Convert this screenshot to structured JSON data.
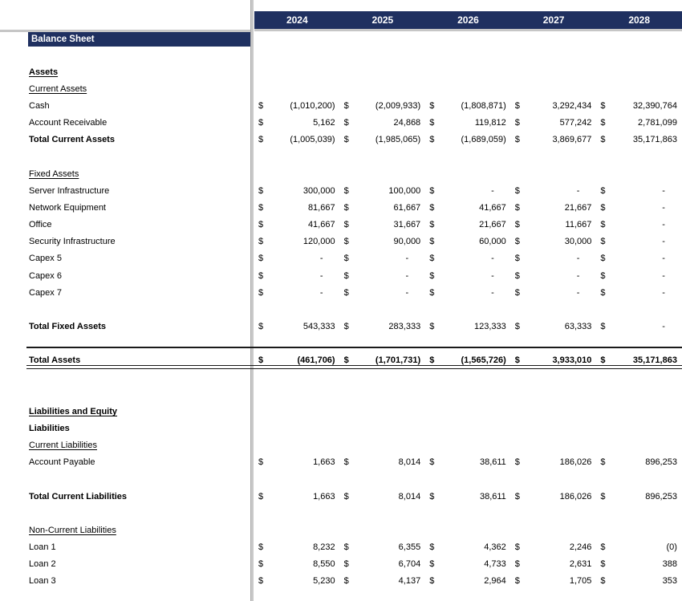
{
  "title": "Balance Sheet",
  "currency_symbol": "$",
  "years": [
    "2024",
    "2025",
    "2026",
    "2027",
    "2028"
  ],
  "colors": {
    "header_navy": "#1F3060",
    "divider_gray": "#C9C9C9",
    "total_border_dark": "#1A1A1A"
  },
  "rows": [
    {
      "label": "",
      "style": "blank",
      "values": null
    },
    {
      "label": "Assets",
      "style": "heading",
      "values": null
    },
    {
      "label": "Current Assets",
      "style": "subheading",
      "values": null
    },
    {
      "label": "Cash",
      "style": "item",
      "values": [
        "(1,010,200)",
        "(2,009,933)",
        "(1,808,871)",
        "3,292,434",
        "32,390,764"
      ]
    },
    {
      "label": "Account Receivable",
      "style": "item",
      "values": [
        "5,162",
        "24,868",
        "119,812",
        "577,242",
        "2,781,099"
      ]
    },
    {
      "label": "Total Current Assets",
      "style": "subtotal",
      "values": [
        "(1,005,039)",
        "(1,985,065)",
        "(1,689,059)",
        "3,869,677",
        "35,171,863"
      ]
    },
    {
      "label": "",
      "style": "blank",
      "values": null
    },
    {
      "label": "Fixed Assets",
      "style": "subheading",
      "values": null
    },
    {
      "label": "Server Infrastructure",
      "style": "item",
      "values": [
        "300,000",
        "100,000",
        "-",
        "-",
        "-"
      ]
    },
    {
      "label": "Network Equipment",
      "style": "item",
      "values": [
        "81,667",
        "61,667",
        "41,667",
        "21,667",
        "-"
      ]
    },
    {
      "label": "Office",
      "style": "item",
      "values": [
        "41,667",
        "31,667",
        "21,667",
        "11,667",
        "-"
      ]
    },
    {
      "label": "Security Infrastructure",
      "style": "item",
      "values": [
        "120,000",
        "90,000",
        "60,000",
        "30,000",
        "-"
      ]
    },
    {
      "label": "Capex 5",
      "style": "item",
      "values": [
        "-",
        "-",
        "-",
        "-",
        "-"
      ]
    },
    {
      "label": "Capex 6",
      "style": "item",
      "values": [
        "-",
        "-",
        "-",
        "-",
        "-"
      ]
    },
    {
      "label": "Capex 7",
      "style": "item",
      "values": [
        "-",
        "-",
        "-",
        "-",
        "-"
      ]
    },
    {
      "label": "",
      "style": "blank",
      "values": null
    },
    {
      "label": "Total Fixed Assets",
      "style": "subtotal",
      "values": [
        "543,333",
        "283,333",
        "123,333",
        "63,333",
        "-"
      ]
    },
    {
      "label": "",
      "style": "blank",
      "values": null
    },
    {
      "label": "Total Assets",
      "style": "grand-total",
      "values": [
        "(461,706)",
        "(1,701,731)",
        "(1,565,726)",
        "3,933,010",
        "35,171,863"
      ]
    },
    {
      "label": "",
      "style": "blank",
      "values": null
    },
    {
      "label": "",
      "style": "blank",
      "values": null
    },
    {
      "label": "Liabilities and Equity",
      "style": "heading",
      "values": null
    },
    {
      "label": "Liabilities",
      "style": "bold",
      "values": null
    },
    {
      "label": "Current Liabilities",
      "style": "subheading",
      "values": null
    },
    {
      "label": "Account Payable",
      "style": "item",
      "values": [
        "1,663",
        "8,014",
        "38,611",
        "186,026",
        "896,253"
      ]
    },
    {
      "label": "",
      "style": "blank",
      "values": null
    },
    {
      "label": "Total Current Liabilities",
      "style": "subtotal",
      "values": [
        "1,663",
        "8,014",
        "38,611",
        "186,026",
        "896,253"
      ]
    },
    {
      "label": "",
      "style": "blank",
      "values": null
    },
    {
      "label": "Non-Current Liabilities",
      "style": "subheading",
      "values": null
    },
    {
      "label": "Loan 1",
      "style": "item",
      "values": [
        "8,232",
        "6,355",
        "4,362",
        "2,246",
        "(0)"
      ]
    },
    {
      "label": "Loan 2",
      "style": "item",
      "values": [
        "8,550",
        "6,704",
        "4,733",
        "2,631",
        "388"
      ]
    },
    {
      "label": "Loan 3",
      "style": "item",
      "values": [
        "5,230",
        "4,137",
        "2,964",
        "1,705",
        "353"
      ]
    }
  ]
}
